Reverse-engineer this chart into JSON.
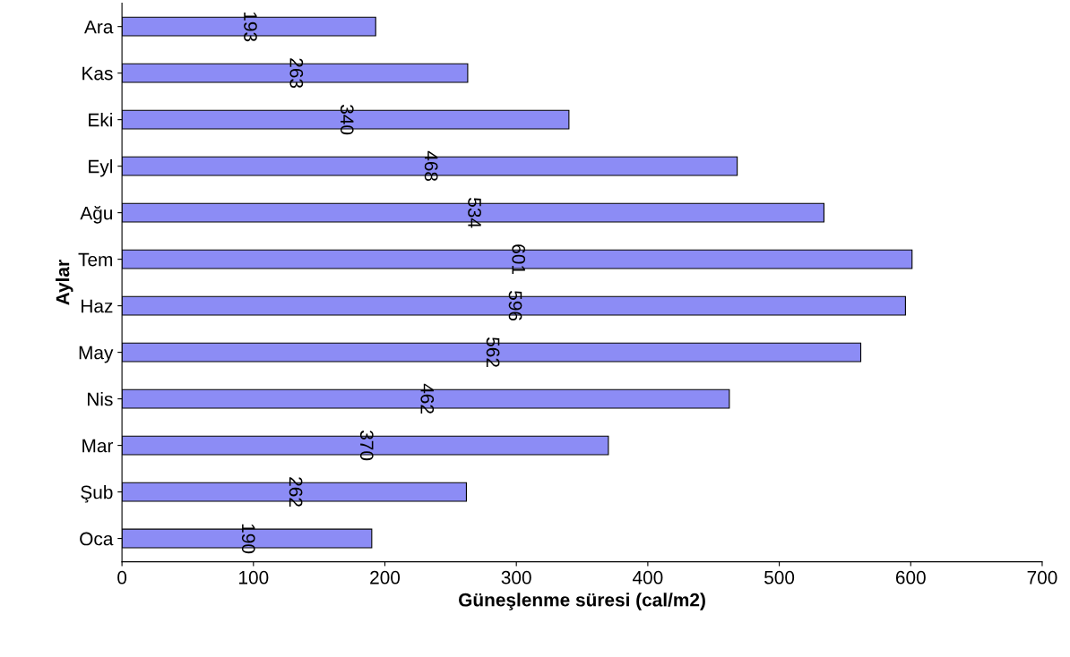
{
  "chart_data": {
    "type": "bar",
    "orientation": "horizontal",
    "xlabel": "Güneşlenme süresi (cal/m2)",
    "ylabel": "Aylar",
    "categories": [
      "Ara",
      "Kas",
      "Eki",
      "Eyl",
      "Ağu",
      "Tem",
      "Haz",
      "May",
      "Nis",
      "Mar",
      "Şub",
      "Oca"
    ],
    "values": [
      193,
      263,
      340,
      468,
      534,
      601,
      596,
      562,
      462,
      370,
      262,
      190
    ],
    "color": "#8c8cf5",
    "xlim": [
      0,
      700
    ],
    "xticks": [
      0,
      100,
      200,
      300,
      400,
      500,
      600,
      700
    ],
    "data_labels": true,
    "grid": false
  }
}
